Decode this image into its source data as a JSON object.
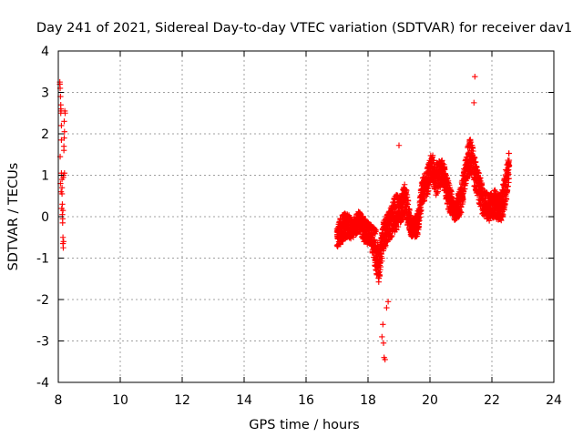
{
  "chart_data": {
    "type": "scatter",
    "title": "Day 241 of 2021, Sidereal Day-to-day VTEC variation (SDTVAR) for receiver dav1",
    "xlabel": "GPS time / hours",
    "ylabel": "SDTVAR / TECUs",
    "xlim": [
      8,
      24
    ],
    "ylim": [
      -4,
      4
    ],
    "xticks": [
      "8",
      "10",
      "12",
      "14",
      "16",
      "18",
      "20",
      "22",
      "24"
    ],
    "yticks": [
      "-4",
      "-3",
      "-2",
      "-1",
      "0",
      "1",
      "2",
      "3",
      "4"
    ],
    "grid": true,
    "marker": "plus",
    "color": "#ff0000",
    "series": [
      {
        "name": "SDTVAR",
        "x": [
          8.05,
          8.05,
          8.06,
          8.07,
          8.08,
          8.08,
          8.09,
          8.1,
          8.1,
          8.11,
          8.12,
          8.12,
          8.13,
          8.13,
          8.14,
          8.15,
          8.15,
          8.16,
          8.17,
          8.18,
          8.19,
          8.2,
          8.21,
          8.22,
          8.06,
          8.07,
          8.09,
          8.11,
          8.14,
          8.16,
          8.18,
          8.2,
          8.08,
          8.1,
          8.12,
          8.15,
          8.17,
          8.19
        ],
        "y": [
          3.25,
          3.2,
          3.1,
          2.9,
          2.6,
          2.5,
          2.55,
          2.2,
          1.05,
          1.0,
          0.7,
          0.55,
          0.3,
          0.05,
          -0.15,
          -0.5,
          -0.65,
          -0.75,
          1.0,
          1.7,
          1.9,
          2.05,
          2.55,
          2.5,
          1.45,
          0.8,
          0.6,
          0.2,
          -0.05,
          0.95,
          1.6,
          1.05,
          2.7,
          1.85,
          0.9,
          0.15,
          -0.6,
          2.3
        ]
      }
    ],
    "outliers": {
      "x": [
        21.45,
        21.42,
        19.0,
        18.55,
        18.5,
        18.45,
        18.6,
        18.65,
        18.48,
        18.52
      ],
      "y": [
        3.38,
        2.75,
        1.72,
        -3.45,
        -3.05,
        -2.9,
        -2.2,
        -2.05,
        -2.6,
        -3.4
      ]
    }
  }
}
